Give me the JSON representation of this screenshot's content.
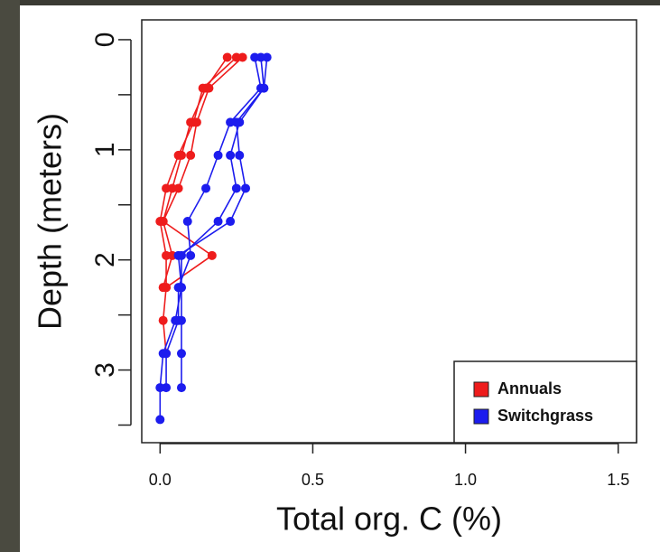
{
  "chart_data": {
    "type": "profile",
    "x_label": "Total org. C (%)",
    "y_label": "Depth (meters)",
    "xlim": [
      -0.06,
      1.56
    ],
    "xticks": [
      {
        "value": 0,
        "label": "0.0"
      },
      {
        "value": 0.5,
        "label": "0.5"
      },
      {
        "value": 1,
        "label": "1.0"
      },
      {
        "value": 1.5,
        "label": "1.5"
      }
    ],
    "ylim": [
      3.66,
      -0.18
    ],
    "y_inverted": true,
    "yticks": [
      0,
      1,
      2,
      3
    ],
    "yminor_ticks": [
      0.5,
      1.5,
      2.5,
      3.5
    ],
    "legend": "bottom right",
    "series": [
      {
        "name": "Annuals",
        "color": "#ee1c1c",
        "lines": [
          {
            "x": [
              0.27,
              0.16,
              0.12,
              0.1,
              0.06,
              0.01,
              0.17,
              0.02,
              0.01,
              0.02
            ],
            "y": [
              0.16,
              0.44,
              0.75,
              1.05,
              1.35,
              1.65,
              1.96,
              2.25,
              2.55,
              2.85
            ]
          },
          {
            "x": [
              0.22,
              0.15,
              0.1,
              0.07,
              0.04,
              0.01,
              0.04,
              0.01
            ],
            "y": [
              0.16,
              0.44,
              0.75,
              1.05,
              1.35,
              1.65,
              1.96,
              2.25
            ]
          },
          {
            "x": [
              0.25,
              0.14,
              0.11,
              0.06,
              0.02,
              0.0,
              0.02,
              0.02
            ],
            "y": [
              0.16,
              0.44,
              0.75,
              1.05,
              1.35,
              1.65,
              1.96,
              2.25
            ]
          }
        ]
      },
      {
        "name": "Switchgrass",
        "color": "#1c1cee",
        "lines": [
          {
            "x": [
              0.35,
              0.34,
              0.25,
              0.26,
              0.28,
              0.23,
              0.06,
              0.07,
              0.07,
              0.07,
              0.07
            ],
            "y": [
              0.16,
              0.44,
              0.75,
              1.05,
              1.35,
              1.65,
              1.96,
              2.25,
              2.55,
              2.85,
              3.16
            ]
          },
          {
            "x": [
              0.31,
              0.33,
              0.23,
              0.19,
              0.15,
              0.09,
              0.1,
              0.06,
              0.06,
              0.02,
              0.02
            ],
            "y": [
              0.16,
              0.44,
              0.75,
              1.05,
              1.35,
              1.65,
              1.96,
              2.25,
              2.55,
              2.85,
              3.16
            ]
          },
          {
            "x": [
              0.33,
              0.34,
              0.26,
              0.23,
              0.25,
              0.19,
              0.07,
              0.07,
              0.05,
              0.01,
              0.0,
              0.0
            ],
            "y": [
              0.16,
              0.44,
              0.75,
              1.05,
              1.35,
              1.65,
              1.96,
              2.25,
              2.55,
              2.85,
              3.16,
              3.45
            ]
          }
        ]
      }
    ]
  }
}
